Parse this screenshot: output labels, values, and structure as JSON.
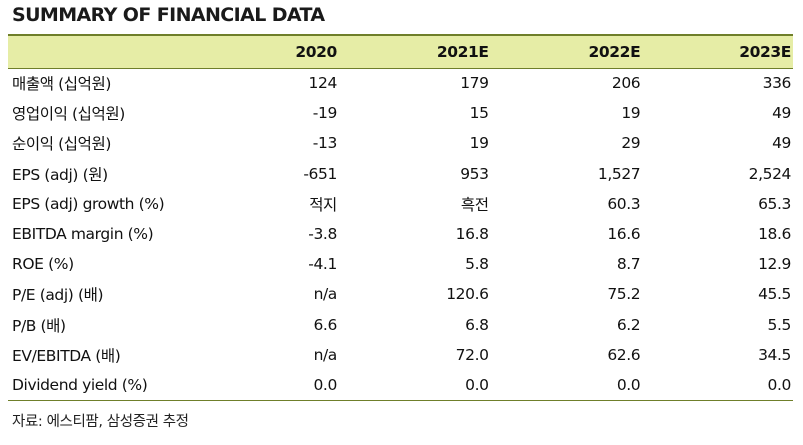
{
  "title": "SUMMARY OF FINANCIAL DATA",
  "columns": [
    "",
    "2020",
    "2021E",
    "2022E",
    "2023E"
  ],
  "rows": [
    {
      "label": "매출액 (십억원)",
      "values": [
        "124",
        "179",
        "206",
        "336"
      ]
    },
    {
      "label": "영업이익 (십억원)",
      "values": [
        "-19",
        "15",
        "19",
        "49"
      ]
    },
    {
      "label": "순이익 (십억원)",
      "values": [
        "-13",
        "19",
        "29",
        "49"
      ]
    },
    {
      "label": "EPS (adj) (원)",
      "values": [
        "-651",
        "953",
        "1,527",
        "2,524"
      ]
    },
    {
      "label": "EPS (adj) growth (%)",
      "values": [
        "적지",
        "흑전",
        "60.3",
        "65.3"
      ]
    },
    {
      "label": "EBITDA margin (%)",
      "values": [
        "-3.8",
        "16.8",
        "16.6",
        "18.6"
      ]
    },
    {
      "label": "ROE (%)",
      "values": [
        "-4.1",
        "5.8",
        "8.7",
        "12.9"
      ]
    },
    {
      "label": "P/E (adj) (배)",
      "values": [
        "n/a",
        "120.6",
        "75.2",
        "45.5"
      ]
    },
    {
      "label": "P/B (배)",
      "values": [
        "6.6",
        "6.8",
        "6.2",
        "5.5"
      ]
    },
    {
      "label": "EV/EBITDA (배)",
      "values": [
        "n/a",
        "72.0",
        "62.6",
        "34.5"
      ]
    },
    {
      "label": "Dividend yield (%)",
      "values": [
        "0.0",
        "0.0",
        "0.0",
        "0.0"
      ]
    }
  ],
  "source": "자료: 에스티팜, 삼성증권 추정",
  "colors": {
    "header_bg": "#e6eda6",
    "rule": "#6f7f2a"
  }
}
